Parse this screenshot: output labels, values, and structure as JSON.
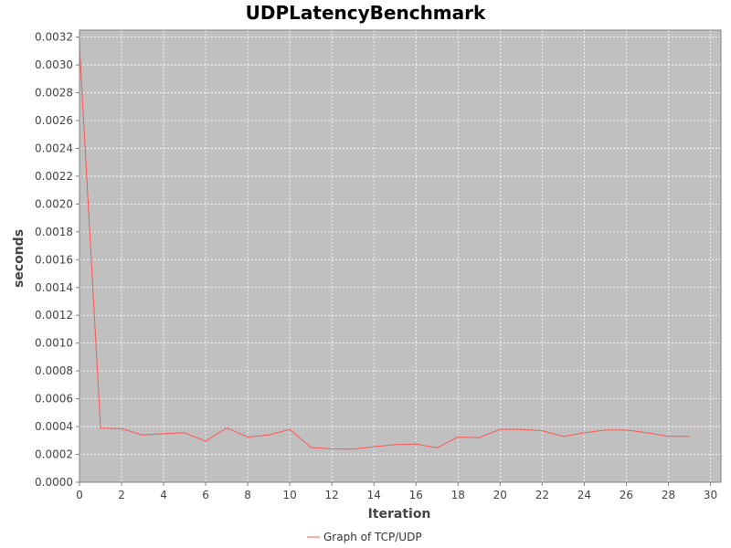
{
  "chart_data": {
    "type": "line",
    "title": "UDPLatencyBenchmark",
    "xlabel": "Iteration",
    "ylabel": "seconds",
    "xlim": [
      0,
      30.5
    ],
    "ylim": [
      0,
      0.00325
    ],
    "xticks": [
      0,
      2,
      4,
      6,
      8,
      10,
      12,
      14,
      16,
      18,
      20,
      22,
      24,
      26,
      28,
      30
    ],
    "yticks": [
      0.0,
      0.0002,
      0.0004,
      0.0006,
      0.0008,
      0.001,
      0.0012,
      0.0014,
      0.0016,
      0.0018,
      0.002,
      0.0022,
      0.0024,
      0.0026,
      0.0028,
      0.003,
      0.0032
    ],
    "ytick_labels": [
      "0.0000",
      "0.0002",
      "0.0004",
      "0.0006",
      "0.0008",
      "0.0010",
      "0.0012",
      "0.0014",
      "0.0016",
      "0.0018",
      "0.0020",
      "0.0022",
      "0.0024",
      "0.0026",
      "0.0028",
      "0.0030",
      "0.0032"
    ],
    "grid": true,
    "legend_position": "bottom-center",
    "plot_background": "#c0c0c0",
    "grid_color": "#ffffff",
    "series": [
      {
        "name": "Graph of TCP/UDP",
        "color": "#ff5555",
        "x": [
          0,
          1,
          2,
          3,
          4,
          5,
          6,
          7,
          8,
          9,
          10,
          11,
          12,
          13,
          14,
          15,
          16,
          17,
          18,
          19,
          20,
          21,
          22,
          23,
          24,
          25,
          26,
          27,
          28,
          29
        ],
        "y": [
          0.00314,
          0.00039,
          0.000385,
          0.00034,
          0.00035,
          0.000355,
          0.000295,
          0.00039,
          0.000325,
          0.00034,
          0.00038,
          0.00025,
          0.00024,
          0.000238,
          0.000255,
          0.00027,
          0.000275,
          0.000248,
          0.000325,
          0.00032,
          0.00038,
          0.00038,
          0.00037,
          0.00033,
          0.000355,
          0.000375,
          0.000375,
          0.000355,
          0.00033,
          0.00033
        ]
      }
    ]
  }
}
